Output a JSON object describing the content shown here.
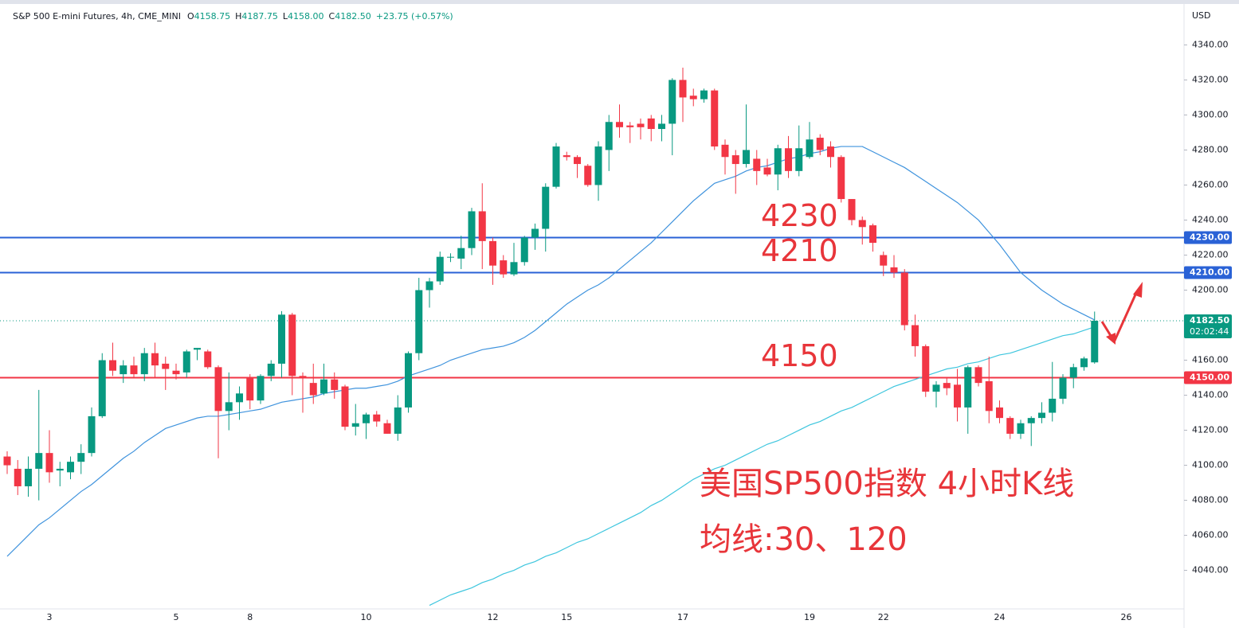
{
  "chart_data": {
    "type": "candlestick",
    "header": {
      "symbol": "S&P 500 E-mini Futures, 4h, CME_MINI",
      "fields": [
        {
          "key": "O",
          "value": "4158.75"
        },
        {
          "key": "H",
          "value": "4187.75"
        },
        {
          "key": "L",
          "value": "4158.00"
        },
        {
          "key": "C",
          "value": "4182.50"
        }
      ],
      "change": "+23.75 (+0.57%)"
    },
    "currency": "USD",
    "up_color": "#089981",
    "down_color": "#f23645",
    "ylim": [
      4018,
      4362
    ],
    "yticks": [
      {
        "value": 4040,
        "label": "4040.00"
      },
      {
        "value": 4060,
        "label": "4060.00"
      },
      {
        "value": 4080,
        "label": "4080.00"
      },
      {
        "value": 4100,
        "label": "4100.00"
      },
      {
        "value": 4120,
        "label": "4120.00"
      },
      {
        "value": 4140,
        "label": "4140.00"
      },
      {
        "value": 4160,
        "label": "4160.00"
      },
      {
        "value": 4180,
        "label": "4180.00"
      },
      {
        "value": 4200,
        "label": "4200.00"
      },
      {
        "value": 4220,
        "label": "4220.00"
      },
      {
        "value": 4240,
        "label": "4240.00"
      },
      {
        "value": 4260,
        "label": "4260.00"
      },
      {
        "value": 4280,
        "label": "4280.00"
      },
      {
        "value": 4300,
        "label": "4300.00"
      },
      {
        "value": 4320,
        "label": "4320.00"
      },
      {
        "value": 4340,
        "label": "4340.00"
      }
    ],
    "grid": false,
    "categories": [
      null,
      null,
      null,
      null,
      "3",
      null,
      null,
      null,
      null,
      null,
      null,
      null,
      null,
      null,
      null,
      null,
      "5",
      null,
      null,
      null,
      null,
      null,
      null,
      "8",
      null,
      null,
      null,
      null,
      null,
      null,
      null,
      null,
      null,
      null,
      "10",
      null,
      null,
      null,
      null,
      null,
      null,
      null,
      null,
      null,
      null,
      null,
      "12",
      null,
      null,
      null,
      null,
      null,
      null,
      "15",
      null,
      null,
      null,
      null,
      null,
      null,
      null,
      null,
      null,
      null,
      "17",
      null,
      null,
      null,
      null,
      null,
      null,
      null,
      null,
      null,
      null,
      null,
      "19",
      null,
      null,
      null,
      null,
      null,
      null,
      "22",
      null,
      null,
      null,
      null,
      null,
      null,
      null,
      null,
      null,
      null,
      "24",
      null,
      null,
      null,
      null,
      null,
      null,
      null,
      null,
      null,
      null,
      null,
      "26"
    ],
    "open": [
      4105,
      4098,
      4088,
      4098,
      4107,
      4097,
      4096,
      4102,
      4107,
      4128,
      4160,
      4152,
      4157,
      4152,
      4164,
      4158,
      4154,
      4153,
      4166,
      4165,
      4156,
      4131,
      4136,
      4150,
      4137,
      4151,
      4158,
      4186,
      4151,
      4147,
      4141,
      4149,
      4145,
      4122,
      4124,
      4129,
      4124,
      4118,
      4133,
      4164,
      4200,
      4205,
      4219,
      4218,
      4224,
      4245,
      4228,
      4217,
      4209,
      4216,
      4230,
      4235,
      4259,
      4277,
      4276,
      4271,
      4260,
      4280,
      4296,
      4294,
      4295,
      4298,
      4292,
      4295,
      4320,
      4311,
      4309,
      4314,
      4283,
      4277,
      4272,
      4275,
      4270,
      4266,
      4281,
      4268,
      4276,
      4287,
      4282,
      4276,
      4252,
      4240,
      4237,
      4220,
      4213,
      4210,
      4180,
      4168,
      4142,
      4147,
      4146,
      4133,
      4156,
      4148,
      4133,
      4127,
      4118,
      4124,
      4127,
      4130,
      4138,
      4150,
      4156,
      4158.75,
      null,
      null,
      null
    ],
    "high": [
      4108,
      4103,
      4105,
      4143,
      4120,
      4102,
      4105,
      4112,
      4133,
      4164,
      4170,
      4160,
      4162,
      4167,
      4170,
      4162,
      4158,
      4166,
      4167,
      4166,
      4157,
      4153,
      4145,
      4152,
      4152,
      4160,
      4188,
      4187,
      4153,
      4158,
      4158,
      4153,
      4146,
      4135,
      4130,
      4131,
      4126,
      4140,
      4165,
      4207,
      4207,
      4222,
      4221,
      4231,
      4247,
      4261,
      4230,
      4220,
      4227,
      4231,
      4238,
      4261,
      4284,
      4279,
      4277,
      4272,
      4285,
      4300,
      4306,
      4296,
      4298,
      4300,
      4300,
      4321,
      4327,
      4315,
      4315,
      4315,
      4286,
      4280,
      4306,
      4280,
      4275,
      4283,
      4288,
      4294,
      4296,
      4289,
      4285,
      4277,
      4252,
      4242,
      4238,
      4222,
      4220,
      4212,
      4186,
      4169,
      4148,
      4150,
      4155,
      4157,
      4157,
      4162,
      4137,
      4128,
      4126,
      4128,
      4136,
      4159,
      4152,
      4158,
      4162,
      4187.75,
      null,
      null,
      null
    ],
    "low": [
      4095,
      4083,
      4082,
      4080,
      4090,
      4088,
      4092,
      4095,
      4105,
      4127,
      4151,
      4147,
      4150,
      4148,
      4150,
      4143,
      4149,
      4150,
      4160,
      4155,
      4104,
      4120,
      4126,
      4132,
      4135,
      4148,
      4150,
      4140,
      4130,
      4135,
      4140,
      4138,
      4120,
      4117,
      4115,
      4122,
      4118,
      4114,
      4130,
      4160,
      4190,
      4203,
      4216,
      4212,
      4220,
      4212,
      4203,
      4207,
      4208,
      4214,
      4223,
      4222,
      4258,
      4274,
      4264,
      4259,
      4251,
      4268,
      4287,
      4284,
      4286,
      4285,
      4285,
      4277,
      4296,
      4305,
      4307,
      4280,
      4266,
      4255,
      4270,
      4260,
      4265,
      4257,
      4264,
      4265,
      4275,
      4277,
      4270,
      4250,
      4237,
      4226,
      4222,
      4208,
      4207,
      4177,
      4162,
      4139,
      4133,
      4140,
      4125,
      4118,
      4145,
      4124,
      4124,
      4115,
      4115,
      4111,
      4124,
      4125,
      4135,
      4144,
      4154,
      4158,
      null,
      null,
      null
    ],
    "close": [
      4100,
      4088,
      4098,
      4107,
      4096,
      4098,
      4102,
      4107,
      4128,
      4160,
      4154,
      4157,
      4152,
      4164,
      4157,
      4155,
      4152,
      4165,
      4167,
      4156,
      4131,
      4136,
      4141,
      4137,
      4151,
      4158,
      4186,
      4151,
      4150,
      4140,
      4149,
      4143,
      4122,
      4124,
      4129,
      4125,
      4118,
      4133,
      4164,
      4200,
      4205,
      4219,
      4219,
      4224,
      4245,
      4228,
      4214,
      4209,
      4216,
      4230,
      4235,
      4259,
      4282,
      4276,
      4272,
      4260,
      4282,
      4296,
      4293,
      4293,
      4293,
      4292,
      4295,
      4320,
      4310,
      4309,
      4314,
      4282,
      4276,
      4272,
      4280,
      4268,
      4266,
      4281,
      4268,
      4281,
      4286,
      4280,
      4276,
      4252,
      4240,
      4236,
      4227,
      4214,
      4210,
      4180,
      4168,
      4142,
      4146,
      4144,
      4133,
      4156,
      4147,
      4131,
      4127,
      4118,
      4124,
      4127,
      4130,
      4138,
      4150,
      4156,
      4161,
      4182.5,
      null,
      null,
      null
    ],
    "overlays": [
      {
        "color": "#3f93dd",
        "values": [
          4048,
          4054,
          4060,
          4066,
          4070,
          4075,
          4080,
          4085,
          4089,
          4094,
          4099,
          4104,
          4108,
          4113,
          4117,
          4121,
          4123,
          4125,
          4127,
          4128,
          4128,
          4129,
          4130,
          4131,
          4132,
          4134,
          4136,
          4137,
          4138,
          4139,
          4141,
          4142,
          4143,
          4144,
          4144,
          4145,
          4146,
          4148,
          4151,
          4153,
          4155,
          4157,
          4160,
          4162,
          4164,
          4166,
          4167,
          4168,
          4170,
          4173,
          4177,
          4182,
          4187,
          4192,
          4196,
          4200,
          4203,
          4207,
          4212,
          4217,
          4222,
          4227,
          4233,
          4239,
          4245,
          4251,
          4256,
          4261,
          4263,
          4265,
          4268,
          4270,
          4271,
          4273,
          4275,
          4276,
          4278,
          4279,
          4281,
          4282,
          4282,
          4282,
          4279,
          4276,
          4273,
          4270,
          4266,
          4262,
          4258,
          4254,
          4250,
          4245,
          4240,
          4233,
          4226,
          4218,
          4210,
          4205,
          4200,
          4196,
          4192,
          4189,
          4186,
          4183,
          null,
          null,
          null
        ]
      },
      {
        "color": "#3ec6de",
        "values": [
          null,
          null,
          null,
          null,
          null,
          null,
          null,
          null,
          null,
          null,
          null,
          null,
          null,
          null,
          null,
          null,
          null,
          null,
          null,
          null,
          null,
          null,
          null,
          null,
          null,
          null,
          null,
          null,
          null,
          null,
          null,
          null,
          null,
          null,
          null,
          null,
          null,
          null,
          null,
          null,
          4020,
          4023,
          4026,
          4028,
          4030,
          4033,
          4035,
          4038,
          4040,
          4043,
          4045,
          4048,
          4050,
          4053,
          4056,
          4058,
          4061,
          4064,
          4067,
          4070,
          4073,
          4077,
          4080,
          4084,
          4088,
          4092,
          4095,
          4098,
          4100,
          4103,
          4106,
          4109,
          4112,
          4114,
          4117,
          4120,
          4123,
          4125,
          4128,
          4131,
          4133,
          4136,
          4139,
          4142,
          4145,
          4147,
          4149,
          4151,
          4153,
          4155,
          4156,
          4158,
          4159,
          4161,
          4163,
          4164,
          4166,
          4168,
          4170,
          4172,
          4174,
          4175,
          4177,
          4179,
          null,
          null,
          null
        ]
      }
    ],
    "levels": [
      {
        "value": 4230,
        "label": "4230.00",
        "color": "#2a62d6"
      },
      {
        "value": 4210,
        "label": "4210.00",
        "color": "#2a62d6"
      },
      {
        "value": 4150,
        "label": "4150.00",
        "color": "#f23645"
      }
    ],
    "last": {
      "value": 4182.5,
      "label": "4182.50",
      "countdown": "02:02:44"
    },
    "annotations": [
      "美国SP500指数 4小时K线",
      "均线:30、120"
    ]
  }
}
